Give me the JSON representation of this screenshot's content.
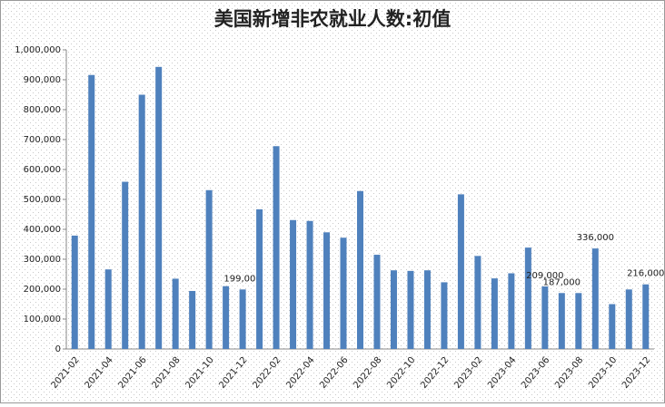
{
  "chart_data": {
    "type": "bar",
    "title": "美国新增非农就业人数:初值",
    "categories": [
      "2021-02",
      null,
      "2021-04",
      null,
      "2021-06",
      null,
      "2021-08",
      null,
      "2021-10",
      null,
      "2021-12",
      null,
      "2022-02",
      null,
      "2022-04",
      null,
      "2022-06",
      null,
      "2022-08",
      null,
      "2022-10",
      null,
      "2022-12",
      null,
      "2023-02",
      null,
      "2023-04",
      null,
      "2023-06",
      null,
      "2023-08",
      null,
      "2023-10",
      null,
      "2023-12"
    ],
    "values": [
      379000,
      916000,
      266000,
      559000,
      850000,
      943000,
      235000,
      194000,
      531000,
      210000,
      199000,
      467000,
      678000,
      431000,
      428000,
      390000,
      372000,
      528000,
      315000,
      263000,
      261000,
      263000,
      223000,
      517000,
      311000,
      236000,
      253000,
      339000,
      209000,
      187000,
      187000,
      336000,
      150000,
      199000,
      216000
    ],
    "value_labels": [
      null,
      null,
      null,
      null,
      null,
      null,
      null,
      null,
      null,
      null,
      "199,000",
      null,
      null,
      null,
      null,
      null,
      null,
      null,
      null,
      null,
      null,
      null,
      null,
      null,
      null,
      null,
      null,
      null,
      "209,000",
      "187,000",
      null,
      "336,000",
      null,
      null,
      "216,000"
    ],
    "color": "#4f81bd",
    "ylim": [
      0,
      1000000
    ],
    "yticks": [
      0,
      {
        "value": 100000,
        "label": "100,000"
      },
      {
        "value": 200000,
        "label": "200,000"
      },
      {
        "value": 300000,
        "label": "300,000"
      },
      {
        "value": 400000,
        "label": "400,000"
      },
      {
        "value": 500000,
        "label": "500,000"
      },
      {
        "value": 600000,
        "label": "600,000"
      },
      {
        "value": 700000,
        "label": "700,000"
      },
      {
        "value": 800000,
        "label": "800,000"
      },
      {
        "value": 900000,
        "label": "900,000"
      },
      {
        "value": 1000000,
        "label": "1,000,000"
      }
    ]
  }
}
